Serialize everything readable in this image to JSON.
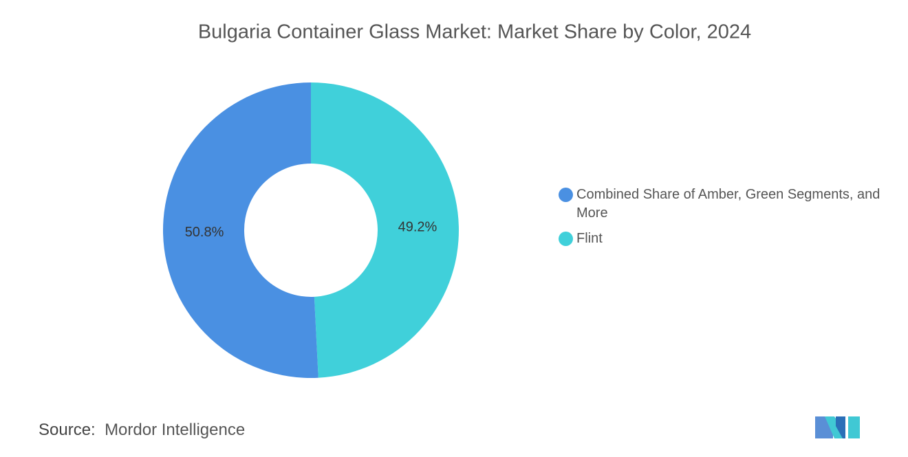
{
  "chart_data": {
    "type": "donut",
    "title": "Bulgaria Container Glass Market: Market Share by Color, 2024",
    "categories": [
      "Combined Share of Amber, Green Segments, and More",
      "Flint"
    ],
    "values": [
      50.8,
      49.2
    ],
    "value_labels": [
      "50.8%",
      "49.2%"
    ],
    "colors": [
      "#4a90e2",
      "#40d0da"
    ],
    "source_label": "Source:",
    "source": "Mordor Intelligence"
  }
}
